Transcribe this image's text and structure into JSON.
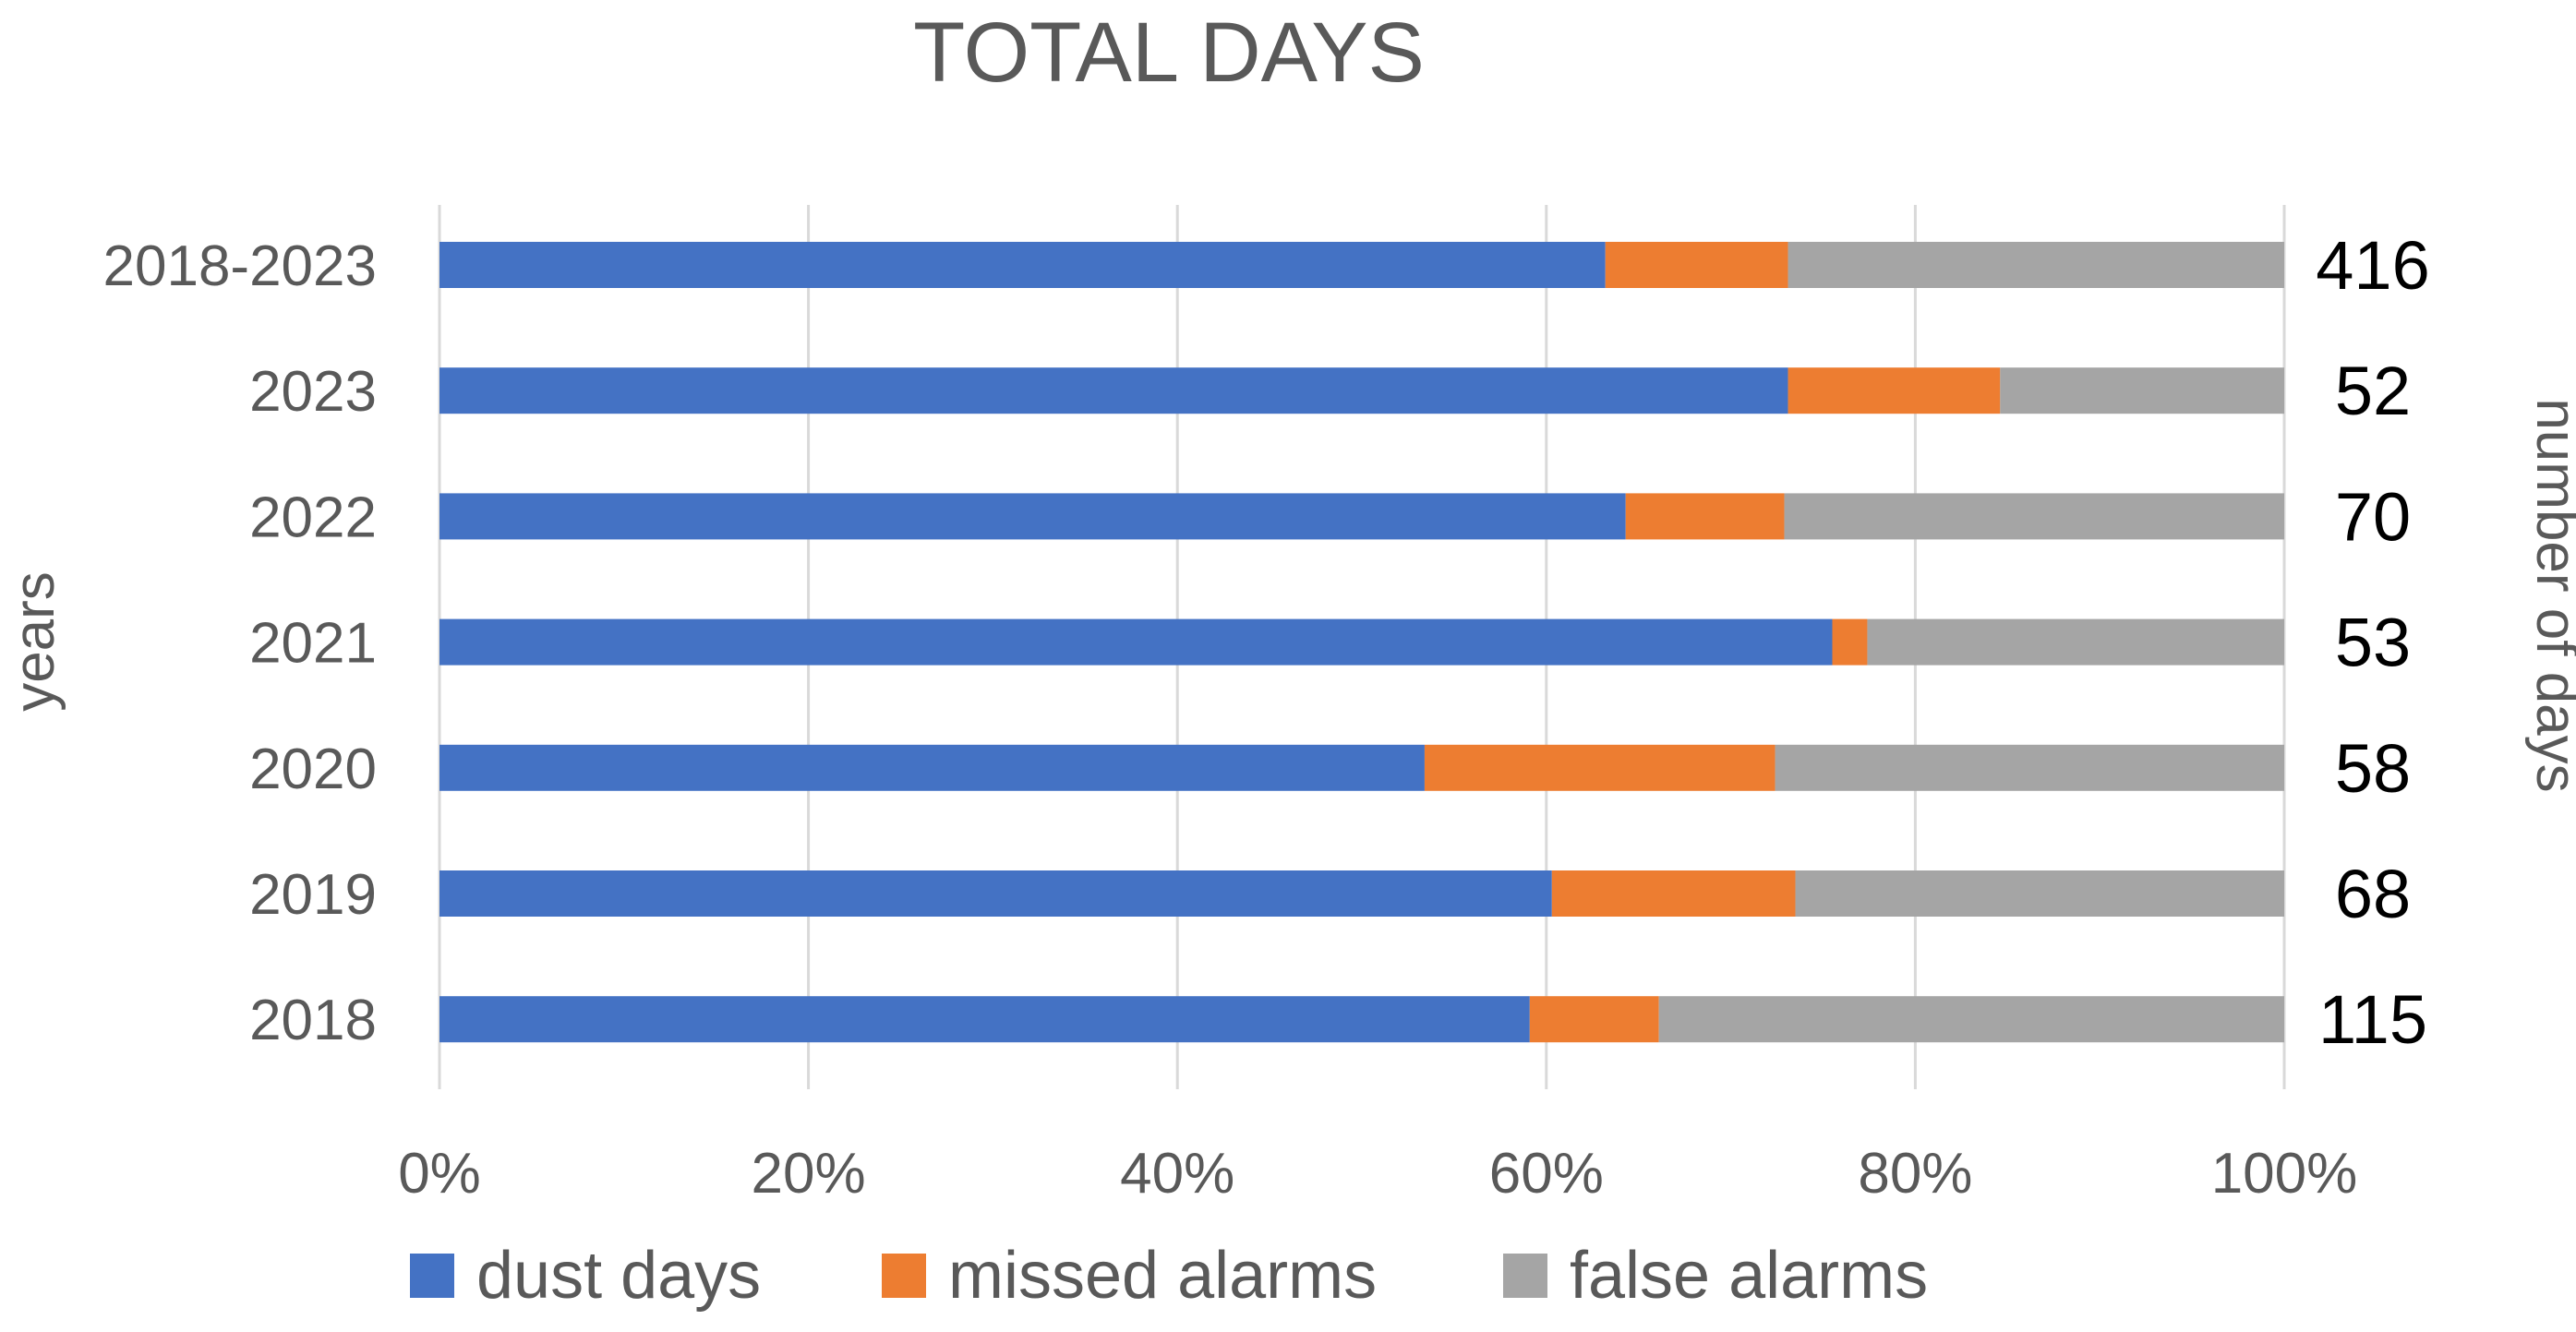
{
  "chart_data": {
    "type": "bar",
    "orientation": "horizontal",
    "stacked": "percent",
    "title": "TOTAL DAYS",
    "ylabel": "years",
    "y2label": "number of days",
    "categories": [
      "2018-2023",
      "2023",
      "2022",
      "2021",
      "2020",
      "2019",
      "2018"
    ],
    "series": [
      {
        "name": "dust days",
        "color": "#4472c4",
        "values": [
          63.2,
          73.1,
          64.3,
          75.5,
          53.4,
          60.3,
          59.1
        ]
      },
      {
        "name": "missed alarms",
        "color": "#ed7d31",
        "values": [
          9.9,
          11.5,
          8.6,
          1.9,
          19.0,
          13.2,
          7.0
        ]
      },
      {
        "name": "false alarms",
        "color": "#a5a5a5",
        "values": [
          26.9,
          15.4,
          27.1,
          22.6,
          27.6,
          26.5,
          33.9
        ]
      }
    ],
    "totals": [
      "416",
      "52",
      "70",
      "53",
      "58",
      "68",
      "115"
    ],
    "xlim": [
      0,
      100
    ],
    "xticks": [
      "0%",
      "20%",
      "40%",
      "60%",
      "80%",
      "100%"
    ],
    "grid": true,
    "legend_position": "bottom"
  }
}
